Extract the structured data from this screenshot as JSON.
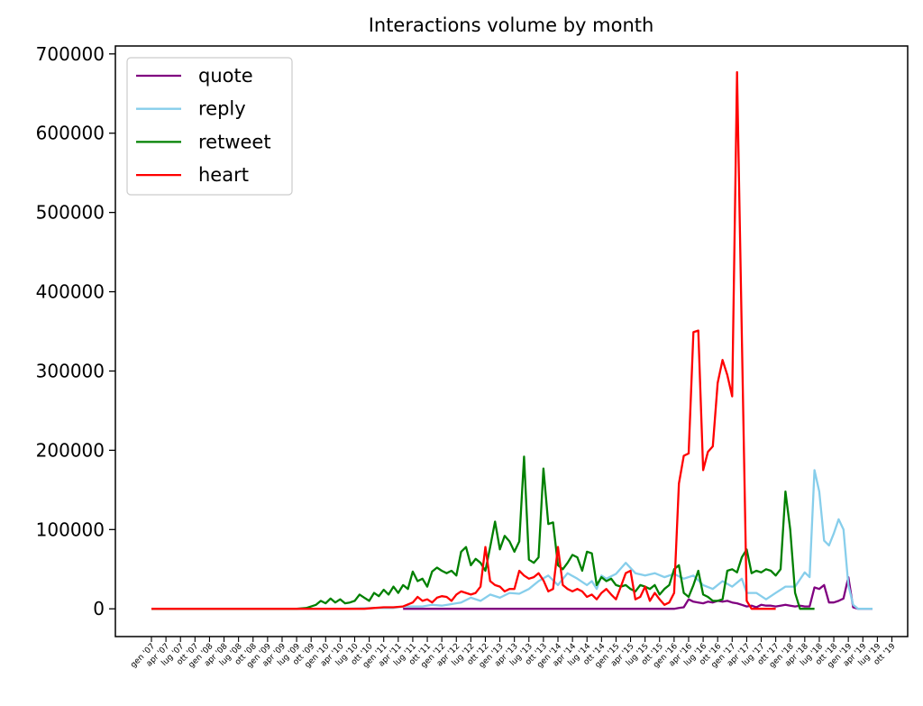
{
  "chart_data": {
    "type": "line",
    "title": "Interactions volume by month",
    "xlabel": "",
    "ylabel": "",
    "ylim": [
      -35000,
      710000
    ],
    "yticks": [
      0,
      100000,
      200000,
      300000,
      400000,
      500000,
      600000,
      700000
    ],
    "ytick_labels": [
      "0",
      "100000",
      "200000",
      "300000",
      "400000",
      "500000",
      "600000",
      "700000"
    ],
    "xtick_labels": [
      "gen '07",
      "apr '07",
      "lug '07",
      "ott '07",
      "gen '08",
      "apr '08",
      "lug '08",
      "ott '08",
      "gen '09",
      "apr '09",
      "lug '09",
      "ott '09",
      "gen '10",
      "apr '10",
      "lug '10",
      "ott '10",
      "gen '11",
      "apr '11",
      "lug '11",
      "ott '11",
      "gen '12",
      "apr '12",
      "lug '12",
      "ott '12",
      "gen '13",
      "apr '13",
      "lug '13",
      "ott '13",
      "gen '14",
      "apr '14",
      "lug '14",
      "ott '14",
      "gen '15",
      "apr '15",
      "lug '15",
      "ott '15",
      "gen '16",
      "apr '16",
      "lug '16",
      "ott '16",
      "gen '17",
      "apr '17",
      "lug '17",
      "ott '17",
      "gen '18",
      "apr '18",
      "lug '18",
      "ott '18",
      "gen '19",
      "apr '19",
      "lug '19",
      "ott '19"
    ],
    "legend_position": "top-left",
    "grid": false,
    "series": [
      {
        "name": "quote",
        "color": "#800080",
        "points": [
          [
            52,
            0
          ],
          [
            108,
            0
          ],
          [
            109,
            1000
          ],
          [
            110,
            2000
          ],
          [
            111,
            12000
          ],
          [
            112,
            9000
          ],
          [
            113,
            8000
          ],
          [
            114,
            7000
          ],
          [
            115,
            9000
          ],
          [
            116,
            8000
          ],
          [
            117,
            10000
          ],
          [
            118,
            9000
          ],
          [
            119,
            10000
          ],
          [
            120,
            8000
          ],
          [
            121,
            7000
          ],
          [
            122,
            5000
          ],
          [
            123,
            3000
          ],
          [
            124,
            4000
          ],
          [
            125,
            2000
          ],
          [
            126,
            5000
          ],
          [
            127,
            4000
          ],
          [
            128,
            4000
          ],
          [
            129,
            3000
          ],
          [
            130,
            4000
          ],
          [
            131,
            5000
          ],
          [
            132,
            4000
          ],
          [
            133,
            3000
          ],
          [
            134,
            4000
          ],
          [
            135,
            3000
          ],
          [
            136,
            3000
          ],
          [
            137,
            27000
          ],
          [
            138,
            25000
          ],
          [
            139,
            30000
          ],
          [
            140,
            8000
          ],
          [
            141,
            8000
          ],
          [
            142,
            10000
          ],
          [
            143,
            13000
          ],
          [
            144,
            40000
          ],
          [
            145,
            2000
          ],
          [
            146,
            0
          ],
          [
            147,
            0
          ],
          [
            148,
            0
          ],
          [
            149,
            0
          ]
        ]
      },
      {
        "name": "reply",
        "color": "#87CEEB",
        "points": [
          [
            0,
            0
          ],
          [
            40,
            0
          ],
          [
            46,
            1000
          ],
          [
            50,
            1000
          ],
          [
            52,
            3000
          ],
          [
            56,
            3000
          ],
          [
            58,
            5000
          ],
          [
            60,
            4000
          ],
          [
            62,
            6000
          ],
          [
            64,
            8000
          ],
          [
            66,
            14000
          ],
          [
            68,
            10000
          ],
          [
            70,
            18000
          ],
          [
            72,
            14000
          ],
          [
            74,
            20000
          ],
          [
            76,
            19000
          ],
          [
            78,
            25000
          ],
          [
            80,
            35000
          ],
          [
            82,
            42000
          ],
          [
            84,
            30000
          ],
          [
            86,
            45000
          ],
          [
            88,
            38000
          ],
          [
            90,
            30000
          ],
          [
            91,
            35000
          ],
          [
            92,
            25000
          ],
          [
            93,
            42000
          ],
          [
            94,
            38000
          ],
          [
            96,
            44000
          ],
          [
            98,
            58000
          ],
          [
            100,
            45000
          ],
          [
            102,
            42000
          ],
          [
            104,
            45000
          ],
          [
            106,
            40000
          ],
          [
            108,
            44000
          ],
          [
            110,
            38000
          ],
          [
            112,
            42000
          ],
          [
            114,
            30000
          ],
          [
            116,
            25000
          ],
          [
            118,
            35000
          ],
          [
            120,
            28000
          ],
          [
            122,
            38000
          ],
          [
            123,
            20000
          ],
          [
            125,
            20000
          ],
          [
            127,
            12000
          ],
          [
            129,
            20000
          ],
          [
            131,
            28000
          ],
          [
            133,
            28000
          ],
          [
            135,
            46000
          ],
          [
            136,
            40000
          ],
          [
            137,
            175000
          ],
          [
            138,
            148000
          ],
          [
            139,
            86000
          ],
          [
            140,
            80000
          ],
          [
            141,
            95000
          ],
          [
            142,
            113000
          ],
          [
            143,
            100000
          ],
          [
            144,
            30000
          ],
          [
            145,
            5000
          ],
          [
            146,
            0
          ],
          [
            149,
            0
          ]
        ]
      },
      {
        "name": "retweet",
        "color": "#008000",
        "points": [
          [
            0,
            0
          ],
          [
            30,
            0
          ],
          [
            32,
            1000
          ],
          [
            34,
            5000
          ],
          [
            35,
            10000
          ],
          [
            36,
            7000
          ],
          [
            37,
            13000
          ],
          [
            38,
            8000
          ],
          [
            39,
            12000
          ],
          [
            40,
            7000
          ],
          [
            41,
            8000
          ],
          [
            42,
            10000
          ],
          [
            43,
            18000
          ],
          [
            44,
            14000
          ],
          [
            45,
            10000
          ],
          [
            46,
            20000
          ],
          [
            47,
            16000
          ],
          [
            48,
            24000
          ],
          [
            49,
            18000
          ],
          [
            50,
            28000
          ],
          [
            51,
            20000
          ],
          [
            52,
            30000
          ],
          [
            53,
            25000
          ],
          [
            54,
            47000
          ],
          [
            55,
            35000
          ],
          [
            56,
            38000
          ],
          [
            57,
            28000
          ],
          [
            58,
            47000
          ],
          [
            59,
            52000
          ],
          [
            60,
            48000
          ],
          [
            61,
            45000
          ],
          [
            62,
            48000
          ],
          [
            63,
            42000
          ],
          [
            64,
            72000
          ],
          [
            65,
            78000
          ],
          [
            66,
            55000
          ],
          [
            67,
            63000
          ],
          [
            68,
            58000
          ],
          [
            69,
            48000
          ],
          [
            70,
            78000
          ],
          [
            71,
            110000
          ],
          [
            72,
            75000
          ],
          [
            73,
            92000
          ],
          [
            74,
            85000
          ],
          [
            75,
            72000
          ],
          [
            76,
            85000
          ],
          [
            77,
            192000
          ],
          [
            78,
            62000
          ],
          [
            79,
            58000
          ],
          [
            80,
            65000
          ],
          [
            81,
            177000
          ],
          [
            82,
            107000
          ],
          [
            83,
            109000
          ],
          [
            84,
            55000
          ],
          [
            85,
            50000
          ],
          [
            86,
            58000
          ],
          [
            87,
            68000
          ],
          [
            88,
            65000
          ],
          [
            89,
            48000
          ],
          [
            90,
            72000
          ],
          [
            91,
            70000
          ],
          [
            92,
            30000
          ],
          [
            93,
            40000
          ],
          [
            94,
            35000
          ],
          [
            95,
            38000
          ],
          [
            96,
            30000
          ],
          [
            97,
            28000
          ],
          [
            98,
            30000
          ],
          [
            99,
            25000
          ],
          [
            100,
            22000
          ],
          [
            101,
            30000
          ],
          [
            102,
            28000
          ],
          [
            103,
            25000
          ],
          [
            104,
            30000
          ],
          [
            105,
            18000
          ],
          [
            106,
            25000
          ],
          [
            107,
            30000
          ],
          [
            108,
            50000
          ],
          [
            109,
            55000
          ],
          [
            110,
            20000
          ],
          [
            111,
            15000
          ],
          [
            112,
            30000
          ],
          [
            113,
            48000
          ],
          [
            114,
            18000
          ],
          [
            115,
            15000
          ],
          [
            116,
            10000
          ],
          [
            117,
            10000
          ],
          [
            118,
            12000
          ],
          [
            119,
            48000
          ],
          [
            120,
            50000
          ],
          [
            121,
            46000
          ],
          [
            122,
            65000
          ],
          [
            123,
            75000
          ],
          [
            124,
            45000
          ],
          [
            125,
            48000
          ],
          [
            126,
            46000
          ],
          [
            127,
            50000
          ],
          [
            128,
            48000
          ],
          [
            129,
            42000
          ],
          [
            130,
            50000
          ],
          [
            131,
            148000
          ],
          [
            132,
            100000
          ],
          [
            133,
            20000
          ],
          [
            134,
            0
          ],
          [
            137,
            0
          ]
        ]
      },
      {
        "name": "heart",
        "color": "#FF0000",
        "points": [
          [
            0,
            0
          ],
          [
            44,
            0
          ],
          [
            46,
            1000
          ],
          [
            48,
            2000
          ],
          [
            50,
            2000
          ],
          [
            52,
            3000
          ],
          [
            54,
            8000
          ],
          [
            55,
            15000
          ],
          [
            56,
            10000
          ],
          [
            57,
            12000
          ],
          [
            58,
            8000
          ],
          [
            59,
            14000
          ],
          [
            60,
            16000
          ],
          [
            61,
            15000
          ],
          [
            62,
            10000
          ],
          [
            63,
            18000
          ],
          [
            64,
            22000
          ],
          [
            65,
            20000
          ],
          [
            66,
            18000
          ],
          [
            67,
            20000
          ],
          [
            68,
            28000
          ],
          [
            69,
            78000
          ],
          [
            70,
            35000
          ],
          [
            71,
            30000
          ],
          [
            72,
            28000
          ],
          [
            73,
            22000
          ],
          [
            74,
            25000
          ],
          [
            75,
            25000
          ],
          [
            76,
            48000
          ],
          [
            77,
            42000
          ],
          [
            78,
            38000
          ],
          [
            79,
            40000
          ],
          [
            80,
            45000
          ],
          [
            81,
            36000
          ],
          [
            82,
            22000
          ],
          [
            83,
            25000
          ],
          [
            84,
            78000
          ],
          [
            85,
            30000
          ],
          [
            86,
            25000
          ],
          [
            87,
            22000
          ],
          [
            88,
            25000
          ],
          [
            89,
            22000
          ],
          [
            90,
            15000
          ],
          [
            91,
            18000
          ],
          [
            92,
            12000
          ],
          [
            93,
            20000
          ],
          [
            94,
            25000
          ],
          [
            95,
            18000
          ],
          [
            96,
            12000
          ],
          [
            97,
            28000
          ],
          [
            98,
            45000
          ],
          [
            99,
            48000
          ],
          [
            100,
            12000
          ],
          [
            101,
            15000
          ],
          [
            102,
            28000
          ],
          [
            103,
            10000
          ],
          [
            104,
            20000
          ],
          [
            105,
            12000
          ],
          [
            106,
            5000
          ],
          [
            107,
            8000
          ],
          [
            108,
            20000
          ],
          [
            109,
            158000
          ],
          [
            110,
            193000
          ],
          [
            111,
            196000
          ],
          [
            112,
            349000
          ],
          [
            113,
            351000
          ],
          [
            114,
            175000
          ],
          [
            115,
            198000
          ],
          [
            116,
            205000
          ],
          [
            117,
            285000
          ],
          [
            118,
            314000
          ],
          [
            119,
            295000
          ],
          [
            120,
            268000
          ],
          [
            121,
            677000
          ],
          [
            122,
            345000
          ],
          [
            123,
            10000
          ],
          [
            124,
            0
          ],
          [
            129,
            0
          ]
        ]
      }
    ]
  }
}
